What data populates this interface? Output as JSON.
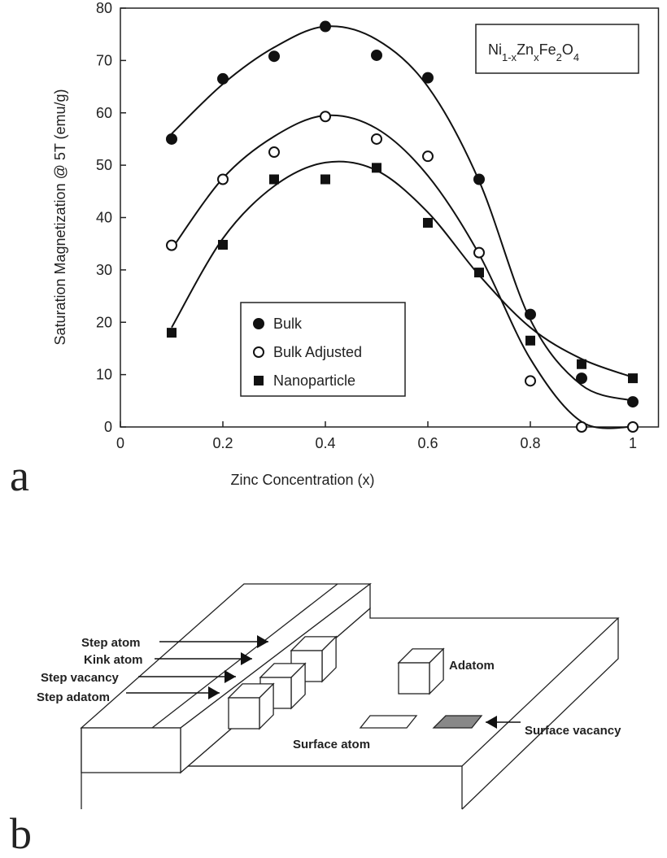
{
  "chart_data": {
    "type": "scatter",
    "panel_label": "a",
    "annotation": [
      {
        "text": "Ni",
        "sub": false
      },
      {
        "text": "1-x",
        "sub": true
      },
      {
        "text": "Zn",
        "sub": false
      },
      {
        "text": "x",
        "sub": true
      },
      {
        "text": "Fe",
        "sub": false
      },
      {
        "text": "2",
        "sub": true
      },
      {
        "text": "O",
        "sub": false
      },
      {
        "text": "4",
        "sub": true
      }
    ],
    "x_label": "Zinc Concentration (x)",
    "y_label": "Saturation Magnetization @ 5T (emu/g)",
    "x": [
      0.1,
      0.2,
      0.3,
      0.4,
      0.5,
      0.6,
      0.7,
      0.8,
      0.9,
      1
    ],
    "series": [
      {
        "name": "Bulk",
        "color": "#111111",
        "marker": "circle-filled",
        "values": [
          55,
          66.5,
          70.8,
          76.5,
          71,
          66.7,
          47.3,
          21.5,
          9.3,
          4.8
        ],
        "fit": [
          56,
          65.5,
          72.5,
          76.5,
          74,
          65,
          47,
          20.5,
          8,
          5
        ]
      },
      {
        "name": "Bulk Adjusted",
        "color": "#111111",
        "marker": "circle-open",
        "values": [
          34.7,
          47.3,
          52.5,
          59.3,
          55,
          51.7,
          33.3,
          8.8,
          0,
          0
        ],
        "fit": [
          34,
          47.5,
          55.5,
          59.5,
          57,
          48,
          33,
          13,
          1,
          0
        ]
      },
      {
        "name": "Nanoparticle",
        "color": "#111111",
        "marker": "square",
        "values": [
          18,
          34.8,
          47.3,
          47.3,
          49.5,
          39,
          29.5,
          16.5,
          12,
          9.3
        ],
        "fit": [
          19,
          36,
          46,
          50.5,
          49,
          41,
          29,
          19,
          13,
          9.5
        ]
      }
    ],
    "xlim": [
      0,
      1.05
    ],
    "ylim": [
      0,
      80
    ],
    "xticks": [
      0,
      0.2,
      0.4,
      0.6,
      0.8,
      1
    ],
    "yticks": [
      0,
      10,
      20,
      30,
      40,
      50,
      60,
      70,
      80
    ]
  },
  "diagram": {
    "panel_label": "b",
    "labels": {
      "step_atom": "Step atom",
      "kink_atom": "Kink atom",
      "step_vacancy": "Step vacancy",
      "step_adatom": "Step adatom",
      "adatom": "Adatom",
      "surface_atom": "Surface atom",
      "surface_vacancy": "Surface vacancy"
    }
  }
}
